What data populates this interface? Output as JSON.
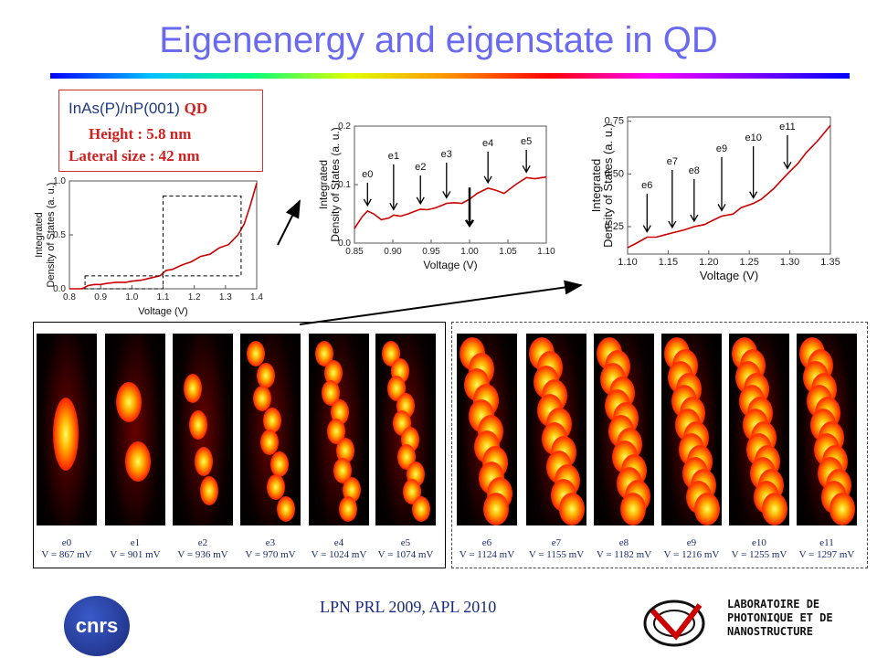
{
  "title": "Eigenenergy and eigenstate in QD",
  "qd_box": {
    "material": "InAs(P)/nP(001)",
    "qd": "QD",
    "height": "Height : 5.8 nm",
    "lateral": "Lateral size : 42 nm"
  },
  "chart_data": [
    {
      "type": "line",
      "xlabel": "Voltage (V)",
      "ylabel": "Integrated Density of States (a. u.)",
      "xlim": [
        0.8,
        1.4
      ],
      "ylim": [
        0.0,
        1.0
      ],
      "xticks": [
        "0.8",
        "0.9",
        "1.0",
        "1.1",
        "1.2",
        "1.3",
        "1.4"
      ],
      "yticks": [
        "0.0",
        "0.5",
        "1.0"
      ],
      "x": [
        0.8,
        0.84,
        0.86,
        0.88,
        0.9,
        0.92,
        0.95,
        0.98,
        1.0,
        1.03,
        1.06,
        1.09,
        1.11,
        1.13,
        1.16,
        1.19,
        1.22,
        1.25,
        1.28,
        1.31,
        1.34,
        1.36,
        1.38,
        1.4
      ],
      "y": [
        0.0,
        0.0,
        0.03,
        0.04,
        0.04,
        0.05,
        0.06,
        0.06,
        0.07,
        0.08,
        0.1,
        0.12,
        0.17,
        0.18,
        0.22,
        0.25,
        0.3,
        0.32,
        0.38,
        0.41,
        0.5,
        0.6,
        0.78,
        0.98
      ]
    },
    {
      "type": "line",
      "xlabel": "Voltage (V)",
      "ylabel": "Integrated Density of States (a. u.)",
      "xlim": [
        0.85,
        1.1
      ],
      "ylim": [
        0.0,
        0.2
      ],
      "xticks": [
        "0.85",
        "0.90",
        "0.95",
        "1.00",
        "1.05",
        "1.10"
      ],
      "yticks": [
        "0.0",
        "0.1",
        "0.2"
      ],
      "x": [
        0.85,
        0.86,
        0.867,
        0.875,
        0.885,
        0.895,
        0.901,
        0.91,
        0.92,
        0.93,
        0.936,
        0.945,
        0.955,
        0.965,
        0.97,
        0.98,
        0.99,
        1.0,
        1.01,
        1.024,
        1.035,
        1.045,
        1.06,
        1.074,
        1.085,
        1.1
      ],
      "y": [
        0.025,
        0.045,
        0.055,
        0.05,
        0.04,
        0.043,
        0.048,
        0.046,
        0.05,
        0.055,
        0.058,
        0.057,
        0.06,
        0.065,
        0.068,
        0.069,
        0.068,
        0.075,
        0.085,
        0.094,
        0.09,
        0.085,
        0.1,
        0.112,
        0.11,
        0.113
      ],
      "annotations": [
        "e0",
        "e1",
        "e2",
        "e3",
        "e4",
        "e5"
      ]
    },
    {
      "type": "line",
      "xlabel": "Voltage (V)",
      "ylabel": "Integrated Density of States (a. u.)",
      "xlim": [
        1.1,
        1.35
      ],
      "ylim": [
        0.12,
        0.77
      ],
      "xticks": [
        "1.10",
        "1.15",
        "1.20",
        "1.25",
        "1.30",
        "1.35"
      ],
      "yticks": [
        "0.25",
        "0.50",
        "0.75"
      ],
      "x": [
        1.1,
        1.11,
        1.124,
        1.135,
        1.145,
        1.155,
        1.17,
        1.182,
        1.195,
        1.205,
        1.216,
        1.23,
        1.24,
        1.255,
        1.265,
        1.28,
        1.297,
        1.31,
        1.32,
        1.335,
        1.35
      ],
      "y": [
        0.15,
        0.17,
        0.2,
        0.2,
        0.21,
        0.22,
        0.235,
        0.25,
        0.26,
        0.28,
        0.3,
        0.31,
        0.34,
        0.36,
        0.38,
        0.43,
        0.5,
        0.55,
        0.6,
        0.66,
        0.73
      ],
      "annotations": [
        "e6",
        "e7",
        "e8",
        "e9",
        "e10",
        "e11"
      ]
    }
  ],
  "states": [
    {
      "id": "e0",
      "v": "V = 867 mV"
    },
    {
      "id": "e1",
      "v": "V = 901 mV"
    },
    {
      "id": "e2",
      "v": "V = 936 mV"
    },
    {
      "id": "e3",
      "v": "V = 970 mV"
    },
    {
      "id": "e4",
      "v": "V = 1024 mV"
    },
    {
      "id": "e5",
      "v": "V = 1074 mV"
    },
    {
      "id": "e6",
      "v": "V = 1124 mV"
    },
    {
      "id": "e7",
      "v": "V = 1155 mV"
    },
    {
      "id": "e8",
      "v": "V = 1182 mV"
    },
    {
      "id": "e9",
      "v": "V = 1216 mV"
    },
    {
      "id": "e10",
      "v": "V = 1255 mV"
    },
    {
      "id": "e11",
      "v": "V = 1297 mV"
    }
  ],
  "footer": "LPN PRL 2009, APL 2010",
  "logos": {
    "cnrs": "cnrs",
    "lab": [
      "LABORATOIRE DE",
      "PHOTONIQUE ET DE",
      "NANOSTRUCTURE"
    ]
  },
  "colors": {
    "title": "#6a6af0",
    "qd_red": "#d02020",
    "curve": "#cc0000"
  }
}
